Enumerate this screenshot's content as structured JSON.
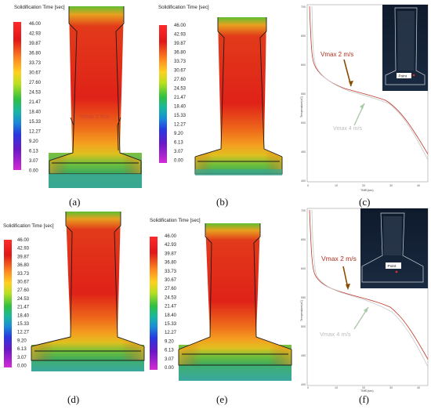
{
  "colorbar": {
    "title": "Solidification Time [sec]",
    "ticks": [
      "46.00",
      "42.93",
      "39.87",
      "36.80",
      "33.73",
      "30.67",
      "27.60",
      "24.53",
      "21.47",
      "18.40",
      "15.33",
      "12.27",
      "9.20",
      "6.13",
      "3.07",
      "0.00"
    ],
    "colors": [
      "#ff2a2a",
      "#e01818",
      "#ff4a1f",
      "#ff8a20",
      "#ffba20",
      "#d8e020",
      "#7cd81a",
      "#20c038",
      "#18b890",
      "#14a8c0",
      "#1c7ad8",
      "#2838e0",
      "#3a20c8",
      "#7a18c0",
      "#b818b8",
      "#d42ad4"
    ]
  },
  "panels": {
    "a": {
      "label": "(a)",
      "overlay_text": "Vmax 2 m/s"
    },
    "b": {
      "label": "(b)"
    },
    "c": {
      "label": "(c)"
    },
    "d": {
      "label": "(d)"
    },
    "e": {
      "label": "(e)"
    },
    "f": {
      "label": "(f)"
    }
  },
  "graph": {
    "ylabel": "Temperature(oC)",
    "xlabel": "TIME(sec)",
    "point_label": "Point",
    "ann_2": "Vmax 2 m/s",
    "ann_4": "Vmax 4 m/s",
    "c_yticks": [
      "700",
      "650",
      "600",
      "550",
      "500",
      "450",
      "400"
    ],
    "c_xticks": [
      "0",
      "10",
      "20",
      "30",
      "40"
    ],
    "f_yticks": [
      "700",
      "650",
      "600",
      "550",
      "500",
      "450",
      "400"
    ],
    "f_xticks": [
      "0",
      "10",
      "20",
      "30",
      "40"
    ],
    "colors": {
      "v2": "#c0392b",
      "v4": "#c8c8c8",
      "arrow2": "#8a4a00",
      "arrow4": "#a8c8a8"
    }
  }
}
